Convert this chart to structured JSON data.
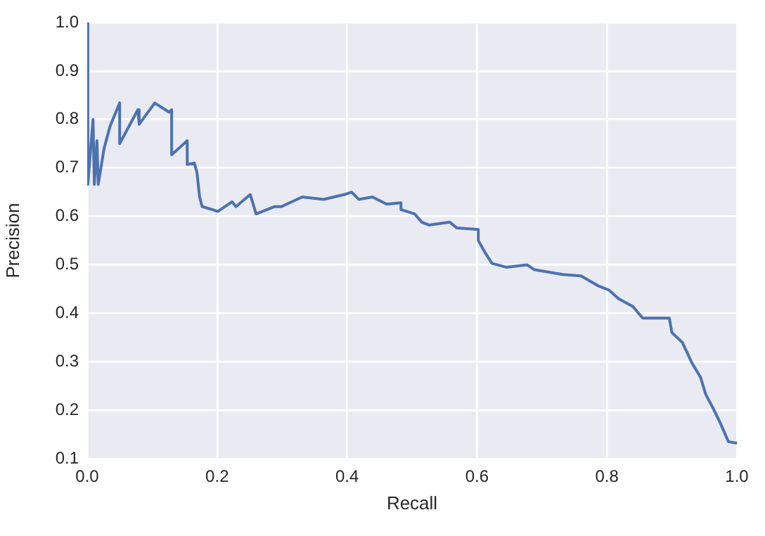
{
  "chart_data": {
    "type": "line",
    "xlabel": "Recall",
    "ylabel": "Precision",
    "x": [
      0,
      0,
      0.002,
      0.009,
      0.011,
      0.015,
      0.017,
      0.026,
      0.035,
      0.05,
      0.05,
      0.078,
      0.08,
      0.104,
      0.126,
      0.13,
      0.13,
      0.154,
      0.154,
      0.165,
      0.169,
      0.173,
      0.177,
      0.19,
      0.201,
      0.223,
      0.229,
      0.251,
      0.26,
      0.288,
      0.299,
      0.331,
      0.364,
      0.396,
      0.407,
      0.418,
      0.439,
      0.461,
      0.483,
      0.483,
      0.504,
      0.515,
      0.526,
      0.558,
      0.569,
      0.602,
      0.602,
      0.613,
      0.623,
      0.645,
      0.677,
      0.688,
      0.732,
      0.76,
      0.786,
      0.803,
      0.818,
      0.84,
      0.855,
      0.896,
      0.9,
      0.916,
      0.931,
      0.944,
      0.952,
      0.963,
      0.974,
      0.987,
      1
    ],
    "series": [
      {
        "color": "#4c72b0",
        "values": [
          1.0,
          0.666,
          0.666,
          0.8,
          0.666,
          0.756,
          0.666,
          0.74,
          0.785,
          0.834,
          0.75,
          0.82,
          0.79,
          0.834,
          0.815,
          0.82,
          0.727,
          0.756,
          0.707,
          0.71,
          0.69,
          0.64,
          0.62,
          0.615,
          0.61,
          0.63,
          0.62,
          0.645,
          0.605,
          0.62,
          0.62,
          0.64,
          0.635,
          0.645,
          0.65,
          0.635,
          0.64,
          0.625,
          0.628,
          0.614,
          0.605,
          0.588,
          0.582,
          0.588,
          0.576,
          0.573,
          0.55,
          0.524,
          0.503,
          0.495,
          0.5,
          0.49,
          0.48,
          0.477,
          0.457,
          0.448,
          0.43,
          0.414,
          0.39,
          0.39,
          0.36,
          0.34,
          0.297,
          0.268,
          0.233,
          0.205,
          0.175,
          0.135,
          0.132
        ]
      }
    ],
    "xlim": [
      0,
      1
    ],
    "xticks": [
      {
        "value": 0,
        "label": "0.0"
      },
      0.2,
      0.4,
      0.6,
      0.8,
      {
        "value": 1,
        "label": "1.0"
      }
    ],
    "ylim": [
      0.1,
      1
    ],
    "yticks": [
      0.1,
      0.2,
      0.3,
      0.4,
      0.5,
      0.6,
      0.7,
      0.8,
      0.9,
      {
        "value": 1,
        "label": "1.0"
      }
    ],
    "grid": true,
    "legend": false,
    "marker": "none",
    "line_style": "solid"
  }
}
